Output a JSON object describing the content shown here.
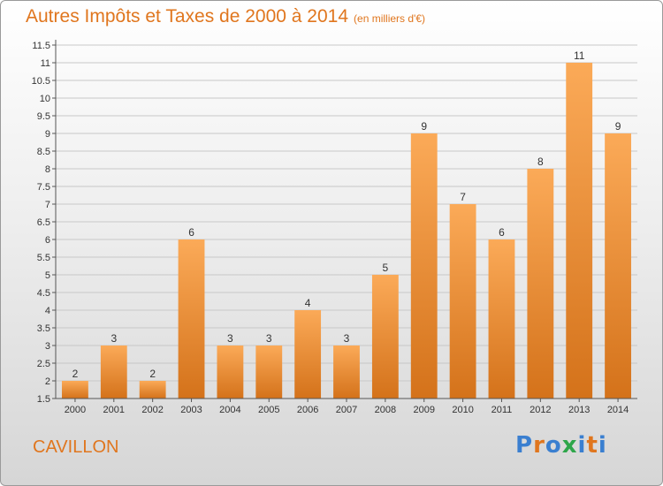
{
  "header": {
    "title": "Autres Impôts et Taxes de 2000 à 2014",
    "unit": "(en milliers d'€)"
  },
  "footer": {
    "place": "CAVILLON",
    "logo": "Proxiti"
  },
  "colors": {
    "bar_light": "#fbaa58",
    "bar_dark": "#d4721a",
    "title": "#e0761e",
    "logo_letters": [
      "#3a7fd0",
      "#e0761e",
      "#3a7fd0",
      "#2ea64a",
      "#3a7fd0",
      "#e0761e",
      "#3a7fd0"
    ]
  },
  "chart_data": {
    "type": "bar",
    "title": "Autres Impôts et Taxes de 2000 à 2014",
    "xlabel": "",
    "ylabel": "",
    "categories": [
      "2000",
      "2001",
      "2002",
      "2003",
      "2004",
      "2005",
      "2006",
      "2007",
      "2008",
      "2009",
      "2010",
      "2011",
      "2012",
      "2013",
      "2014"
    ],
    "values": [
      2,
      3,
      2,
      6,
      3,
      3,
      4,
      3,
      5,
      9,
      7,
      6,
      8,
      11,
      9
    ],
    "data_labels": [
      "2",
      "3",
      "2",
      "6",
      "3",
      "3",
      "4",
      "3",
      "5",
      "9",
      "7",
      "6",
      "8",
      "11",
      "9"
    ],
    "ylim": [
      1.5,
      11.5
    ],
    "yticks": [
      1.5,
      2,
      2.5,
      3,
      3.5,
      4,
      4.5,
      5,
      5.5,
      6,
      6.5,
      7,
      7.5,
      8,
      8.5,
      9,
      9.5,
      10,
      10.5,
      11,
      11.5
    ],
    "ytick_labels": [
      "1.5",
      "2",
      "2.5",
      "3",
      "3.5",
      "4",
      "4.5",
      "5",
      "5.5",
      "6",
      "6.5",
      "7",
      "7.5",
      "8",
      "8.5",
      "9",
      "9.5",
      "10",
      "10.5",
      "11",
      "11.5"
    ],
    "grid": true,
    "legend": "none"
  }
}
